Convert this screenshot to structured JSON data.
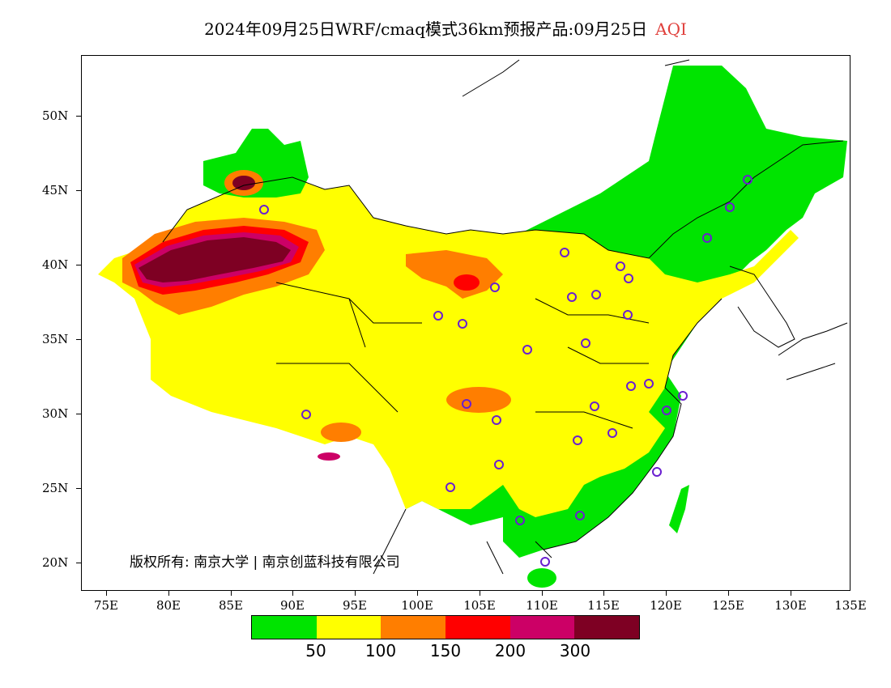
{
  "header": {
    "title": "2024年09月25日WRF/cmaq模式36km预报产品:09月25日",
    "variable": "AQI"
  },
  "map": {
    "latitude_labels": [
      "50N",
      "45N",
      "40N",
      "35N",
      "30N",
      "25N",
      "20N"
    ],
    "longitude_labels": [
      "75E",
      "80E",
      "85E",
      "90E",
      "95E",
      "100E",
      "105E",
      "110E",
      "115E",
      "120E",
      "125E",
      "130E",
      "135E"
    ]
  },
  "legend": {
    "colors": [
      "#00e400",
      "#ffff00",
      "#ff7e00",
      "#ff0000",
      "#cc0066",
      "#7e0023"
    ],
    "labels": [
      "50",
      "100",
      "150",
      "200",
      "300"
    ]
  },
  "copyright": "版权所有: 南京大学 | 南京创蓝科技有限公司"
}
